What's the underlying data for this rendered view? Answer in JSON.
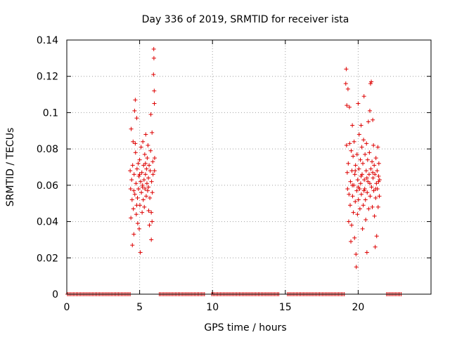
{
  "chart_data": {
    "type": "scatter",
    "title": "Day 336 of 2019, SRMTID for receiver ista",
    "xlabel": "GPS time / hours",
    "ylabel": "SRMTID / TECUs",
    "xlim": [
      0,
      25
    ],
    "ylim": [
      0,
      0.14
    ],
    "xticks": [
      0,
      5,
      10,
      15,
      20
    ],
    "xtick_labels": [
      "0",
      "5",
      "10",
      "15",
      "20"
    ],
    "yticks": [
      0,
      0.02,
      0.04,
      0.06,
      0.08,
      0.1,
      0.12,
      0.14
    ],
    "ytick_labels": [
      "0",
      "0.02",
      "0.04",
      "0.06",
      "0.08",
      "0.1",
      "0.12",
      "0.14"
    ],
    "grid": true,
    "marker": "+",
    "color": "#dd0000",
    "series": [
      {
        "name": "SRMTID",
        "points": [
          [
            4.35,
            0.068
          ],
          [
            4.38,
            0.058
          ],
          [
            4.4,
            0.042
          ],
          [
            4.42,
            0.091
          ],
          [
            4.45,
            0.063
          ],
          [
            4.48,
            0.052
          ],
          [
            4.5,
            0.027
          ],
          [
            4.52,
            0.071
          ],
          [
            4.55,
            0.084
          ],
          [
            4.57,
            0.047
          ],
          [
            4.6,
            0.033
          ],
          [
            4.62,
            0.066
          ],
          [
            4.65,
            0.101
          ],
          [
            4.67,
            0.055
          ],
          [
            4.7,
            0.107
          ],
          [
            4.72,
            0.078
          ],
          [
            4.75,
            0.061
          ],
          [
            4.77,
            0.044
          ],
          [
            4.8,
            0.097
          ],
          [
            4.82,
            0.069
          ],
          [
            4.85,
            0.053
          ],
          [
            4.87,
            0.039
          ],
          [
            4.9,
            0.072
          ],
          [
            4.92,
            0.058
          ],
          [
            4.95,
            0.065
          ],
          [
            4.97,
            0.036
          ],
          [
            5.0,
            0.074
          ],
          [
            5.02,
            0.049
          ],
          [
            5.05,
            0.023
          ],
          [
            5.07,
            0.062
          ],
          [
            5.1,
            0.081
          ],
          [
            5.12,
            0.056
          ],
          [
            5.15,
            0.067
          ],
          [
            5.17,
            0.045
          ],
          [
            5.2,
            0.059
          ],
          [
            5.22,
            0.084
          ],
          [
            5.25,
            0.052
          ],
          [
            5.27,
            0.071
          ],
          [
            5.3,
            0.063
          ],
          [
            5.32,
            0.048
          ],
          [
            5.35,
            0.077
          ],
          [
            5.37,
            0.058
          ],
          [
            5.4,
            0.066
          ],
          [
            5.42,
            0.088
          ],
          [
            5.45,
            0.054
          ],
          [
            5.47,
            0.069
          ],
          [
            5.5,
            0.061
          ],
          [
            5.52,
            0.075
          ],
          [
            5.55,
            0.057
          ],
          [
            5.57,
            0.082
          ],
          [
            5.6,
            0.064
          ],
          [
            5.62,
            0.046
          ],
          [
            5.65,
            0.071
          ],
          [
            5.67,
            0.038
          ],
          [
            5.7,
            0.053
          ],
          [
            5.72,
            0.068
          ],
          [
            5.75,
            0.079
          ],
          [
            5.77,
            0.099
          ],
          [
            5.8,
            0.045
          ],
          [
            5.82,
            0.062
          ],
          [
            5.85,
            0.089
          ],
          [
            5.87,
            0.056
          ],
          [
            5.9,
            0.073
          ],
          [
            5.92,
            0.066
          ],
          [
            5.95,
            0.121
          ],
          [
            5.97,
            0.135
          ],
          [
            5.98,
            0.13
          ],
          [
            6.0,
            0.112
          ],
          [
            6.01,
            0.105
          ],
          [
            6.02,
            0.068
          ],
          [
            6.03,
            0.075
          ],
          [
            4.6,
            0.057
          ],
          [
            4.7,
            0.083
          ],
          [
            4.8,
            0.049
          ],
          [
            5.0,
            0.066
          ],
          [
            5.2,
            0.06
          ],
          [
            5.4,
            0.072
          ],
          [
            5.6,
            0.059
          ],
          [
            5.8,
            0.03
          ],
          [
            5.85,
            0.04
          ],
          [
            19.15,
            0.116
          ],
          [
            19.18,
            0.124
          ],
          [
            19.2,
            0.082
          ],
          [
            19.22,
            0.104
          ],
          [
            19.25,
            0.067
          ],
          [
            19.27,
            0.058
          ],
          [
            19.3,
            0.113
          ],
          [
            19.32,
            0.072
          ],
          [
            19.35,
            0.04
          ],
          [
            19.37,
            0.055
          ],
          [
            19.4,
            0.103
          ],
          [
            19.42,
            0.083
          ],
          [
            19.45,
            0.049
          ],
          [
            19.47,
            0.062
          ],
          [
            19.5,
            0.029
          ],
          [
            19.52,
            0.079
          ],
          [
            19.55,
            0.038
          ],
          [
            19.57,
            0.068
          ],
          [
            19.6,
            0.093
          ],
          [
            19.62,
            0.054
          ],
          [
            19.65,
            0.076
          ],
          [
            19.67,
            0.045
          ],
          [
            19.7,
            0.06
          ],
          [
            19.72,
            0.084
          ],
          [
            19.75,
            0.031
          ],
          [
            19.77,
            0.066
          ],
          [
            19.8,
            0.051
          ],
          [
            19.82,
            0.071
          ],
          [
            19.85,
            0.022
          ],
          [
            19.87,
            0.015
          ],
          [
            19.9,
            0.057
          ],
          [
            19.92,
            0.077
          ],
          [
            19.95,
            0.044
          ],
          [
            19.97,
            0.063
          ],
          [
            20.0,
            0.105
          ],
          [
            20.02,
            0.052
          ],
          [
            20.05,
            0.069
          ],
          [
            20.07,
            0.088
          ],
          [
            20.1,
            0.058
          ],
          [
            20.12,
            0.047
          ],
          [
            20.15,
            0.074
          ],
          [
            20.17,
            0.061
          ],
          [
            20.2,
            0.093
          ],
          [
            20.22,
            0.055
          ],
          [
            20.25,
            0.081
          ],
          [
            20.27,
            0.066
          ],
          [
            20.3,
            0.036
          ],
          [
            20.32,
            0.072
          ],
          [
            20.35,
            0.049
          ],
          [
            20.37,
            0.085
          ],
          [
            20.4,
            0.109
          ],
          [
            20.42,
            0.063
          ],
          [
            20.45,
            0.058
          ],
          [
            20.47,
            0.077
          ],
          [
            20.5,
            0.052
          ],
          [
            20.52,
            0.041
          ],
          [
            20.55,
            0.068
          ],
          [
            20.57,
            0.083
          ],
          [
            20.6,
            0.023
          ],
          [
            20.62,
            0.056
          ],
          [
            20.65,
            0.074
          ],
          [
            20.67,
            0.062
          ],
          [
            20.7,
            0.095
          ],
          [
            20.72,
            0.047
          ],
          [
            20.75,
            0.066
          ],
          [
            20.77,
            0.078
          ],
          [
            20.8,
            0.101
          ],
          [
            20.82,
            0.054
          ],
          [
            20.85,
            0.116
          ],
          [
            20.87,
            0.069
          ],
          [
            20.9,
            0.117
          ],
          [
            20.92,
            0.059
          ],
          [
            20.95,
            0.073
          ],
          [
            20.97,
            0.048
          ],
          [
            21.0,
            0.096
          ],
          [
            21.02,
            0.064
          ],
          [
            21.05,
            0.082
          ],
          [
            21.07,
            0.057
          ],
          [
            21.1,
            0.071
          ],
          [
            21.12,
            0.043
          ],
          [
            21.15,
            0.066
          ],
          [
            21.17,
            0.026
          ],
          [
            21.2,
            0.053
          ],
          [
            21.22,
            0.075
          ],
          [
            21.25,
            0.061
          ],
          [
            21.27,
            0.032
          ],
          [
            21.3,
            0.068
          ],
          [
            21.32,
            0.058
          ],
          [
            21.35,
            0.081
          ],
          [
            21.37,
            0.048
          ],
          [
            21.4,
            0.065
          ],
          [
            21.42,
            0.072
          ],
          [
            21.45,
            0.054
          ],
          [
            21.47,
            0.063
          ],
          [
            19.6,
            0.06
          ],
          [
            19.8,
            0.068
          ],
          [
            20.0,
            0.059
          ],
          [
            20.2,
            0.065
          ],
          [
            20.4,
            0.057
          ],
          [
            20.6,
            0.064
          ],
          [
            20.8,
            0.061
          ],
          [
            21.0,
            0.067
          ],
          [
            21.2,
            0.058
          ],
          [
            21.4,
            0.062
          ]
        ]
      }
    ],
    "zero_rows_hours": [
      [
        0.05,
        4.35
      ],
      [
        6.35,
        9.45
      ],
      [
        9.95,
        14.55
      ],
      [
        15.15,
        19.05
      ],
      [
        21.95,
        22.95
      ]
    ]
  }
}
